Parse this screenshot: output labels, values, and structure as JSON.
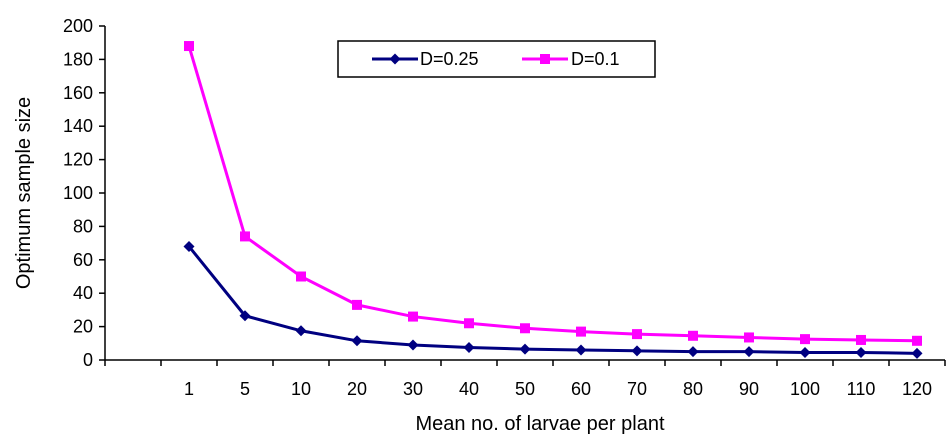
{
  "chart_data": {
    "type": "line",
    "title": "",
    "xlabel": "Mean  no. of larvae per plant",
    "ylabel": "Optimum sample size",
    "categories": [
      "1",
      "5",
      "10",
      "20",
      "30",
      "40",
      "50",
      "60",
      "70",
      "80",
      "90",
      "100",
      "110",
      "120"
    ],
    "ylim": [
      0,
      200
    ],
    "yticks": [
      "0",
      "20",
      "40",
      "60",
      "80",
      "100",
      "120",
      "140",
      "160",
      "180",
      "200"
    ],
    "grid": false,
    "legend_position": "top-center",
    "series": [
      {
        "name": "D=0.25",
        "color": "#000080",
        "marker": "diamond",
        "values": [
          68,
          26.5,
          17.5,
          11.5,
          9,
          7.5,
          6.5,
          6,
          5.5,
          5,
          5,
          4.5,
          4.5,
          4
        ]
      },
      {
        "name": "D=0.1",
        "color": "#FF00FF",
        "marker": "square",
        "values": [
          188,
          74,
          50,
          33,
          26,
          22,
          19,
          17,
          15.5,
          14.5,
          13.5,
          12.5,
          12,
          11.5
        ]
      }
    ]
  }
}
